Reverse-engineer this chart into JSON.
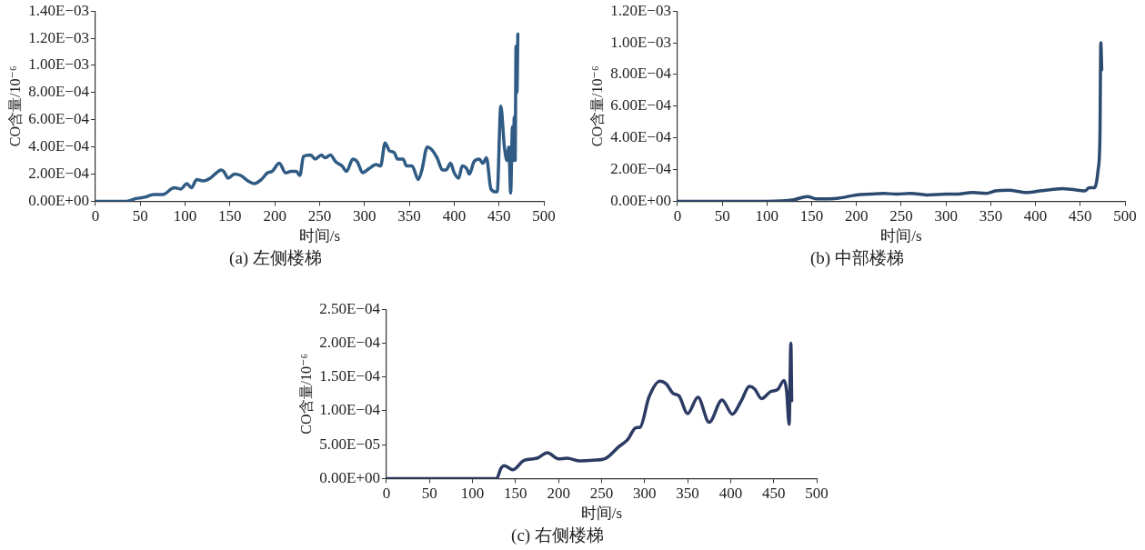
{
  "chart_data": [
    {
      "type": "line",
      "title": "(a) 左侧楼梯",
      "xlabel": "时间/s",
      "ylabel": "CO含量/10⁻⁶",
      "series": [
        {
          "color": "#2f5b84",
          "x": [
            0,
            35,
            45,
            55,
            65,
            75,
            88,
            95,
            102,
            107,
            113,
            120,
            128,
            135,
            140,
            143,
            148,
            155,
            162,
            170,
            177,
            185,
            192,
            197,
            205,
            212,
            218,
            224,
            228,
            232,
            240,
            245,
            252,
            256,
            262,
            268,
            275,
            280,
            287,
            292,
            298,
            305,
            313,
            318,
            323,
            328,
            333,
            337,
            343,
            347,
            353,
            360,
            364,
            370,
            375,
            381,
            387,
            391,
            396,
            400,
            405,
            409,
            414,
            417,
            422,
            428,
            432,
            436,
            441,
            446,
            448,
            452,
            456,
            459,
            461,
            463,
            465,
            466,
            467,
            468,
            469,
            470,
            471
          ],
          "values": [
            0,
            0,
            2e-05,
            3e-05,
            5e-05,
            5e-05,
            0.0001,
            9e-05,
            0.00013,
            0.0001,
            0.00016,
            0.00015,
            0.00017,
            0.00021,
            0.00023,
            0.00022,
            0.00017,
            0.0002,
            0.00019,
            0.00015,
            0.00013,
            0.00016,
            0.00021,
            0.00022,
            0.00028,
            0.00021,
            0.00022,
            0.00022,
            0.00019,
            0.00033,
            0.00034,
            0.00031,
            0.00034,
            0.00032,
            0.00034,
            0.00029,
            0.00026,
            0.00022,
            0.00031,
            0.00029,
            0.00021,
            0.00024,
            0.00027,
            0.00026,
            0.00043,
            0.00037,
            0.00036,
            0.00031,
            0.00031,
            0.00026,
            0.00026,
            0.00016,
            0.00023,
            0.0004,
            0.00038,
            0.00032,
            0.00023,
            0.00023,
            0.00028,
            0.00021,
            0.00017,
            0.00026,
            0.00024,
            0.0002,
            0.00029,
            0.00031,
            0.00028,
            0.00032,
            9e-05,
            7e-05,
            7e-05,
            0.0007,
            0.0004,
            0.0003,
            0.0004,
            6e-05,
            0.00055,
            0.0003,
            0.00062,
            0.0003,
            0.00114,
            0.0008,
            0.00123
          ]
        }
      ],
      "xlim": [
        0,
        500
      ],
      "xticks": [
        0,
        50,
        100,
        150,
        200,
        250,
        300,
        350,
        400,
        450,
        500
      ],
      "ylim": [
        0,
        0.0014
      ],
      "yticks": [
        {
          "value": 0,
          "label": "0.00E+00"
        },
        {
          "value": 0.0002,
          "label": "2.00E−04"
        },
        {
          "value": 0.0004,
          "label": "4.00E−04"
        },
        {
          "value": 0.0006,
          "label": "6.00E−04"
        },
        {
          "value": 0.0008,
          "label": "8.00E−04"
        },
        {
          "value": 0.001,
          "label": "1.00E−03"
        },
        {
          "value": 0.0012,
          "label": "1.20E−03"
        },
        {
          "value": 0.0014,
          "label": "1.40E−03"
        }
      ],
      "grid": false,
      "legend": false,
      "marker": "none",
      "line_style": "solid"
    },
    {
      "type": "line",
      "title": "(b) 中部楼梯",
      "xlabel": "时间/s",
      "ylabel": "CO含量/10⁻⁶",
      "series": [
        {
          "color": "#2b4a6e",
          "x": [
            0,
            100,
            130,
            145,
            155,
            180,
            200,
            215,
            230,
            245,
            260,
            280,
            300,
            310,
            330,
            345,
            355,
            370,
            390,
            405,
            420,
            430,
            440,
            455,
            460,
            466,
            470,
            472,
            473,
            474
          ],
          "values": [
            0,
            0,
            1e-05,
            3e-05,
            1.5e-05,
            2e-05,
            4e-05,
            4.5e-05,
            5e-05,
            4.5e-05,
            5e-05,
            4e-05,
            4.5e-05,
            4.5e-05,
            5.5e-05,
            5e-05,
            6.5e-05,
            7e-05,
            5.5e-05,
            6.5e-05,
            7.5e-05,
            8e-05,
            7.5e-05,
            6.5e-05,
            8.5e-05,
            8.5e-05,
            0.0002,
            0.0004,
            0.001,
            0.00083
          ]
        }
      ],
      "xlim": [
        0,
        500
      ],
      "xticks": [
        0,
        50,
        100,
        150,
        200,
        250,
        300,
        350,
        400,
        450,
        500
      ],
      "ylim": [
        0,
        0.0012
      ],
      "yticks": [
        {
          "value": 0,
          "label": "0.00E+00"
        },
        {
          "value": 0.0002,
          "label": "2.00E−04"
        },
        {
          "value": 0.0004,
          "label": "4.00E−04"
        },
        {
          "value": 0.0006,
          "label": "6.00E−04"
        },
        {
          "value": 0.0008,
          "label": "8.00E−04"
        },
        {
          "value": 0.001,
          "label": "1.00E−03"
        },
        {
          "value": 0.0012,
          "label": "1.20E−03"
        }
      ],
      "grid": false,
      "legend": false,
      "marker": "none",
      "line_style": "solid"
    },
    {
      "type": "line",
      "title": "(c) 右侧楼梯",
      "xlabel": "时间/s",
      "ylabel": "CO含量/10⁻⁶",
      "series": [
        {
          "color": "#2c3b64",
          "x": [
            0,
            128,
            133,
            137,
            147,
            160,
            175,
            187,
            200,
            210,
            225,
            240,
            255,
            270,
            280,
            290,
            295,
            305,
            318,
            325,
            333,
            340,
            350,
            362,
            375,
            390,
            402,
            412,
            422,
            428,
            436,
            446,
            455,
            462,
            465,
            468,
            470,
            471
          ],
          "values": [
            0,
            0,
            1.5e-05,
            1.9e-05,
            1.3e-05,
            2.7e-05,
            3e-05,
            3.8e-05,
            2.9e-05,
            3e-05,
            2.6e-05,
            2.7e-05,
            3e-05,
            4.7e-05,
            5.7e-05,
            7.5e-05,
            7.6e-05,
            0.00012,
            0.000144,
            0.00014,
            0.000126,
            0.000122,
            9.6e-05,
            0.00012,
            8.3e-05,
            0.000116,
            9.5e-05,
            0.000114,
            0.000136,
            0.000132,
            0.000118,
            0.000128,
            0.000132,
            0.000145,
            0.00013,
            8e-05,
            0.0002,
            0.000115
          ]
        }
      ],
      "xlim": [
        0,
        500
      ],
      "xticks": [
        0,
        50,
        100,
        150,
        200,
        250,
        300,
        350,
        400,
        450,
        500
      ],
      "ylim": [
        0,
        0.00025
      ],
      "yticks": [
        {
          "value": 0,
          "label": "0.00E+00"
        },
        {
          "value": 5e-05,
          "label": "5.00E−05"
        },
        {
          "value": 0.0001,
          "label": "1.00E−04"
        },
        {
          "value": 0.00015,
          "label": "1.50E−04"
        },
        {
          "value": 0.0002,
          "label": "2.00E−04"
        },
        {
          "value": 0.00025,
          "label": "2.50E−04"
        }
      ],
      "grid": false,
      "legend": false,
      "marker": "none",
      "line_style": "solid"
    }
  ]
}
